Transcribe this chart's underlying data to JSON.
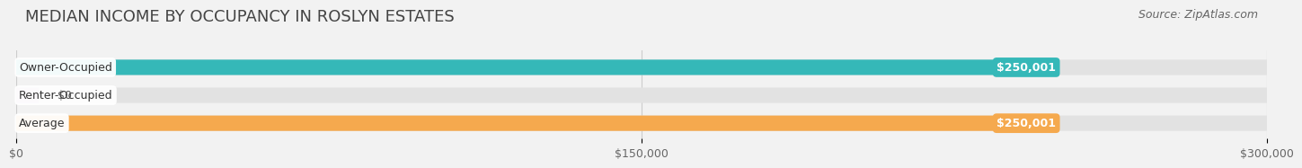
{
  "title": "MEDIAN INCOME BY OCCUPANCY IN ROSLYN ESTATES",
  "source": "Source: ZipAtlas.com",
  "categories": [
    "Owner-Occupied",
    "Renter-Occupied",
    "Average"
  ],
  "values": [
    250001,
    0,
    250001
  ],
  "bar_colors": [
    "#35b8b8",
    "#c9a8d4",
    "#f5a94e"
  ],
  "bar_labels": [
    "$250,001",
    "$0",
    "$250,001"
  ],
  "xlim": [
    0,
    300000
  ],
  "xticks": [
    0,
    150000,
    300000
  ],
  "xtick_labels": [
    "$0",
    "$150,000",
    "$300,000"
  ],
  "background_color": "#f2f2f2",
  "track_color": "#e2e2e2",
  "title_fontsize": 13,
  "source_fontsize": 9,
  "label_fontsize": 9,
  "cat_fontsize": 9,
  "value_label_fontsize": 9
}
